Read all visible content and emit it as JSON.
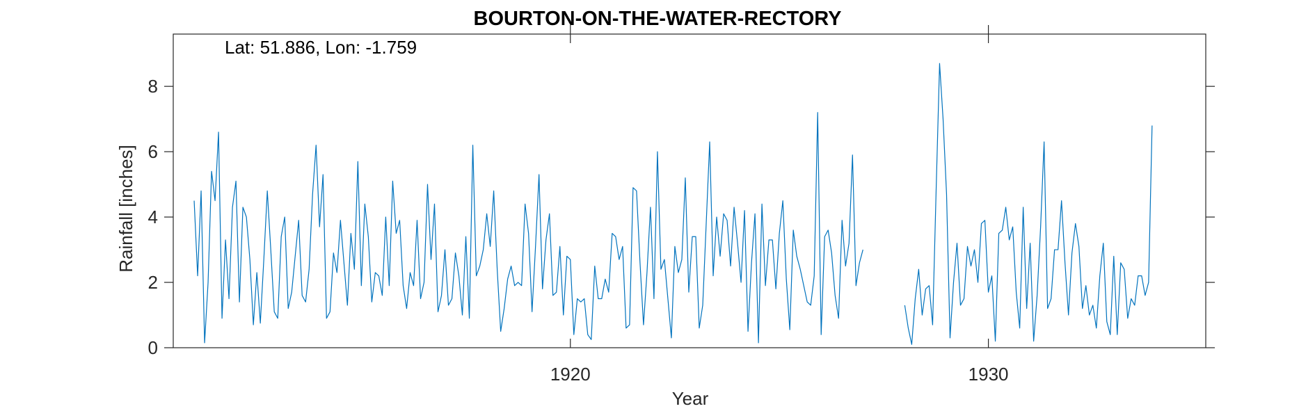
{
  "chart_data": {
    "type": "line",
    "title": "BOURTON-ON-THE-WATER-RECTORY",
    "annotation": "Lat: 51.886, Lon: -1.759",
    "xlabel": "Year",
    "ylabel": "Rainfall [inches]",
    "xlim": [
      1910.5,
      1935.2
    ],
    "ylim": [
      0,
      9.6
    ],
    "xticks": [
      1920,
      1930
    ],
    "yticks": [
      0,
      2,
      4,
      6,
      8
    ],
    "grid": false,
    "line_color": "#0072BD",
    "series": [
      {
        "start": 1911.0,
        "step": 0.08333,
        "values": [
          4.5,
          2.2,
          4.8,
          0.15,
          2.0,
          5.4,
          4.5,
          6.6,
          0.9,
          3.3,
          1.5,
          4.3,
          5.1,
          1.4,
          4.3,
          4.0,
          2.7,
          0.7,
          2.3,
          0.75,
          2.7,
          4.8,
          3.0,
          1.1,
          0.9,
          3.4,
          4.0,
          1.2,
          1.7,
          2.8,
          3.9,
          1.6,
          1.4,
          2.4,
          4.7,
          6.2,
          3.7,
          5.3,
          0.9,
          1.1,
          2.9,
          2.3,
          3.9,
          2.6,
          1.3,
          3.5,
          2.4,
          5.7,
          1.9,
          4.4,
          3.4,
          1.4,
          2.3,
          2.2,
          1.6,
          4.0,
          1.9,
          5.1,
          3.5,
          3.9,
          1.9,
          1.2,
          2.3,
          1.9,
          3.9,
          1.5,
          2.0,
          5.0,
          2.7,
          4.4,
          1.1,
          1.6,
          3.0,
          1.3,
          1.5,
          2.9,
          2.2,
          1.0,
          3.4,
          0.9,
          6.2,
          2.2,
          2.5,
          3.0,
          4.1,
          3.1,
          4.8,
          2.4,
          0.5,
          1.2,
          2.1,
          2.5,
          1.9,
          2.0,
          1.9,
          4.4,
          3.5,
          1.1,
          3.1,
          5.3,
          1.8,
          3.3,
          4.1,
          1.6,
          1.7,
          3.1,
          1.0,
          2.8,
          2.7,
          0.4,
          1.5,
          1.4,
          1.5,
          0.4,
          0.25,
          2.5,
          1.5,
          1.5,
          2.1,
          1.7,
          3.5,
          3.4,
          2.7,
          3.1,
          0.6,
          0.7,
          4.9,
          4.8,
          2.6,
          0.7,
          2.3,
          4.3,
          1.5,
          6.0,
          2.4,
          2.7,
          1.5,
          0.3,
          3.1,
          2.3,
          2.7,
          5.2,
          1.7,
          3.4,
          3.4,
          0.6,
          1.3,
          3.8,
          6.3,
          2.2,
          4.0,
          2.8,
          4.1,
          3.9,
          2.5,
          4.3,
          3.2,
          2.0,
          4.2,
          0.5,
          2.6,
          4.1,
          0.15,
          4.4,
          1.9,
          3.3,
          3.3,
          1.8,
          3.5,
          4.5,
          2.1,
          0.55,
          3.6,
          2.8,
          2.4,
          1.9,
          1.4,
          1.3,
          2.2,
          7.2,
          0.4,
          3.4,
          3.6,
          2.9,
          1.6,
          0.9,
          3.9,
          2.5,
          3.2,
          5.9,
          1.9,
          2.6,
          3.0,
          null,
          null,
          null,
          null,
          null,
          null,
          null,
          null,
          null,
          null,
          null,
          1.3,
          0.6,
          0.1,
          1.5,
          2.4,
          1.0,
          1.8,
          1.9,
          0.7,
          4.8,
          8.7,
          7.0,
          4.7,
          0.3,
          2.0,
          3.2,
          1.3,
          1.5,
          3.1,
          2.5,
          3.0,
          2.0,
          3.8,
          3.9,
          1.7,
          2.2,
          0.2,
          3.5,
          3.6,
          4.3,
          3.3,
          3.7,
          1.7,
          0.6,
          4.3,
          1.2,
          3.2,
          0.2,
          1.6,
          3.7,
          6.3,
          1.2,
          1.5,
          3.0,
          3.0,
          4.5,
          2.6,
          1.0,
          2.9,
          3.8,
          3.1,
          1.2,
          1.9,
          1.0,
          1.3,
          0.6,
          2.2,
          3.2,
          0.8,
          0.4,
          2.8,
          0.4,
          2.6,
          2.4,
          0.9,
          1.5,
          1.3,
          2.2,
          2.2,
          1.6,
          2.0,
          6.8
        ]
      }
    ]
  }
}
